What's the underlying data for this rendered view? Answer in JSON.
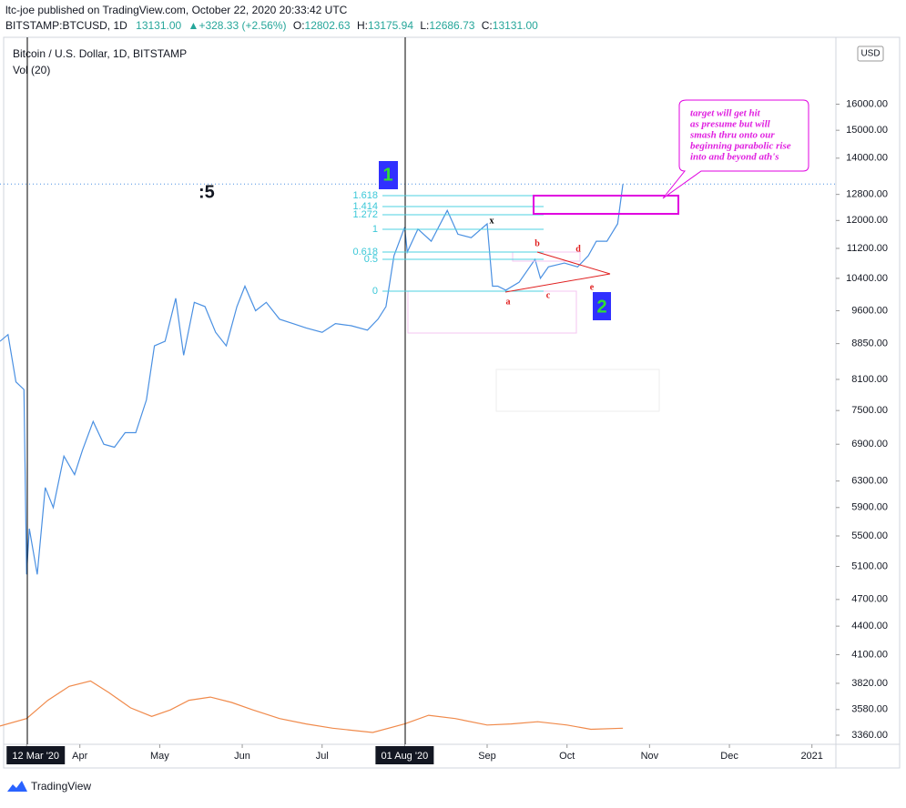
{
  "header": {
    "publisher": "ltc-joe published on TradingView.com, October 22, 2020 20:33:42 UTC",
    "symbol": "BITSTAMP:BTCUSD, 1D",
    "last": "13131.00",
    "change": "+328.33 (+2.56%)",
    "open_label": "O:",
    "open": "12802.63",
    "high_label": "H:",
    "high": "13175.94",
    "low_label": "L:",
    "low": "12686.73",
    "close_label": "C:",
    "close": "13131.00"
  },
  "legend": {
    "instrument": "Bitcoin / U.S. Dollar, 1D, BITSTAMP",
    "volume": "Vol (20)"
  },
  "annotations": {
    "count": ":5",
    "wave1": "1",
    "wave2": "2",
    "fib": [
      "1.618",
      "1.414",
      "1.272",
      "1",
      "0.618",
      "0.5",
      "0"
    ],
    "waves": [
      "x",
      "a",
      "b",
      "c",
      "d",
      "e"
    ],
    "callout": [
      "target will get hit",
      "as presume but will",
      "smash thru onto our",
      "beginning parabolic rise",
      "into and beyond ath's"
    ]
  },
  "currency": "USD",
  "footer": "TradingView",
  "chart_data": {
    "type": "line",
    "log_scale": true,
    "x": [
      "2020-03-02",
      "2020-03-05",
      "2020-03-08",
      "2020-03-11",
      "2020-03-12",
      "2020-03-13",
      "2020-03-16",
      "2020-03-19",
      "2020-03-22",
      "2020-03-26",
      "2020-03-30",
      "2020-04-02",
      "2020-04-06",
      "2020-04-10",
      "2020-04-14",
      "2020-04-18",
      "2020-04-22",
      "2020-04-26",
      "2020-04-29",
      "2020-05-03",
      "2020-05-07",
      "2020-05-10",
      "2020-05-14",
      "2020-05-18",
      "2020-05-22",
      "2020-05-26",
      "2020-05-30",
      "2020-06-02",
      "2020-06-06",
      "2020-06-10",
      "2020-06-15",
      "2020-06-20",
      "2020-06-25",
      "2020-07-01",
      "2020-07-06",
      "2020-07-12",
      "2020-07-18",
      "2020-07-22",
      "2020-07-25",
      "2020-07-28",
      "2020-08-01",
      "2020-08-02",
      "2020-08-06",
      "2020-08-11",
      "2020-08-17",
      "2020-08-21",
      "2020-08-26",
      "2020-09-01",
      "2020-09-03",
      "2020-09-05",
      "2020-09-08",
      "2020-09-13",
      "2020-09-19",
      "2020-09-21",
      "2020-09-24",
      "2020-09-30",
      "2020-10-05",
      "2020-10-09",
      "2020-10-12",
      "2020-10-16",
      "2020-10-20",
      "2020-10-22"
    ],
    "series": [
      {
        "name": "Bitcoin / U.S. Dollar",
        "color": "#4a90e2",
        "values": [
          8900,
          9050,
          8050,
          7900,
          5000,
          5600,
          5000,
          6200,
          5900,
          6700,
          6400,
          6800,
          7300,
          6900,
          6850,
          7100,
          7100,
          7700,
          8800,
          8900,
          9900,
          8600,
          9800,
          9700,
          9100,
          8800,
          9700,
          10200,
          9600,
          9800,
          9400,
          9300,
          9200,
          9100,
          9300,
          9250,
          9150,
          9400,
          9700,
          11000,
          11800,
          11100,
          11750,
          11400,
          12300,
          11600,
          11500,
          11900,
          10200,
          10200,
          10100,
          10300,
          10900,
          10400,
          10700,
          10800,
          10700,
          11000,
          11400,
          11400,
          11900,
          13131
        ]
      },
      {
        "name": "Vol (20)",
        "color": "#f08a4b",
        "axis": "y2",
        "x": [
          "2020-03-02",
          "2020-03-12",
          "2020-03-20",
          "2020-03-28",
          "2020-04-05",
          "2020-04-12",
          "2020-04-20",
          "2020-04-28",
          "2020-05-05",
          "2020-05-12",
          "2020-05-20",
          "2020-05-28",
          "2020-06-05",
          "2020-06-15",
          "2020-06-25",
          "2020-07-05",
          "2020-07-20",
          "2020-08-01",
          "2020-08-10",
          "2020-08-20",
          "2020-09-01",
          "2020-09-10",
          "2020-09-20",
          "2020-10-01",
          "2020-10-10",
          "2020-10-22"
        ],
        "values": [
          17,
          24,
          41,
          54,
          59,
          48,
          34,
          26,
          32,
          41,
          44,
          39,
          32,
          24,
          19,
          15,
          11,
          19,
          27,
          24,
          18,
          19,
          21,
          18,
          14,
          15
        ]
      }
    ],
    "xlim": [
      "2020-03-02",
      "2021-01-10"
    ],
    "xticks": [
      {
        "value": "2020-03-12",
        "label": "12 Mar '20"
      },
      {
        "value": "2020-04-01",
        "label": "Apr"
      },
      {
        "value": "2020-05-01",
        "label": "May"
      },
      {
        "value": "2020-06-01",
        "label": "Jun"
      },
      {
        "value": "2020-07-01",
        "label": "Jul"
      },
      {
        "value": "2020-08-01",
        "label": "01 Aug '20"
      },
      {
        "value": "2020-09-01",
        "label": "Sep"
      },
      {
        "value": "2020-10-01",
        "label": "Oct"
      },
      {
        "value": "2020-11-01",
        "label": "Nov"
      },
      {
        "value": "2020-12-01",
        "label": "Dec"
      },
      {
        "value": "2021-01-01",
        "label": "2021"
      }
    ],
    "highlighted_xticks": [
      0,
      5
    ],
    "ylim": [
      3285,
      18920
    ],
    "yticks": [
      {
        "value": 3360,
        "label": "3360.00"
      },
      {
        "value": 3580,
        "label": "3580.00"
      },
      {
        "value": 3820,
        "label": "3820.00"
      },
      {
        "value": 4100,
        "label": "4100.00"
      },
      {
        "value": 4400,
        "label": "4400.00"
      },
      {
        "value": 4700,
        "label": "4700.00"
      },
      {
        "value": 5100,
        "label": "5100.00"
      },
      {
        "value": 5500,
        "label": "5500.00"
      },
      {
        "value": 5900,
        "label": "5900.00"
      },
      {
        "value": 6300,
        "label": "6300.00"
      },
      {
        "value": 6900,
        "label": "6900.00"
      },
      {
        "value": 7500,
        "label": "7500.00"
      },
      {
        "value": 8100,
        "label": "8100.00"
      },
      {
        "value": 8850,
        "label": "8850.00"
      },
      {
        "value": 9600,
        "label": "9600.00"
      },
      {
        "value": 10400,
        "label": "10400.00"
      },
      {
        "value": 11200,
        "label": "11200.00"
      },
      {
        "value": 12000,
        "label": "12000.00"
      },
      {
        "value": 12800,
        "label": "12800.00"
      },
      {
        "value": 14000,
        "label": "14000.00"
      },
      {
        "value": 15000,
        "label": "15000.00"
      },
      {
        "value": 16000,
        "label": "16000.00"
      }
    ],
    "y2lim": [
      0,
      100
    ],
    "last_price_line": 13131
  }
}
